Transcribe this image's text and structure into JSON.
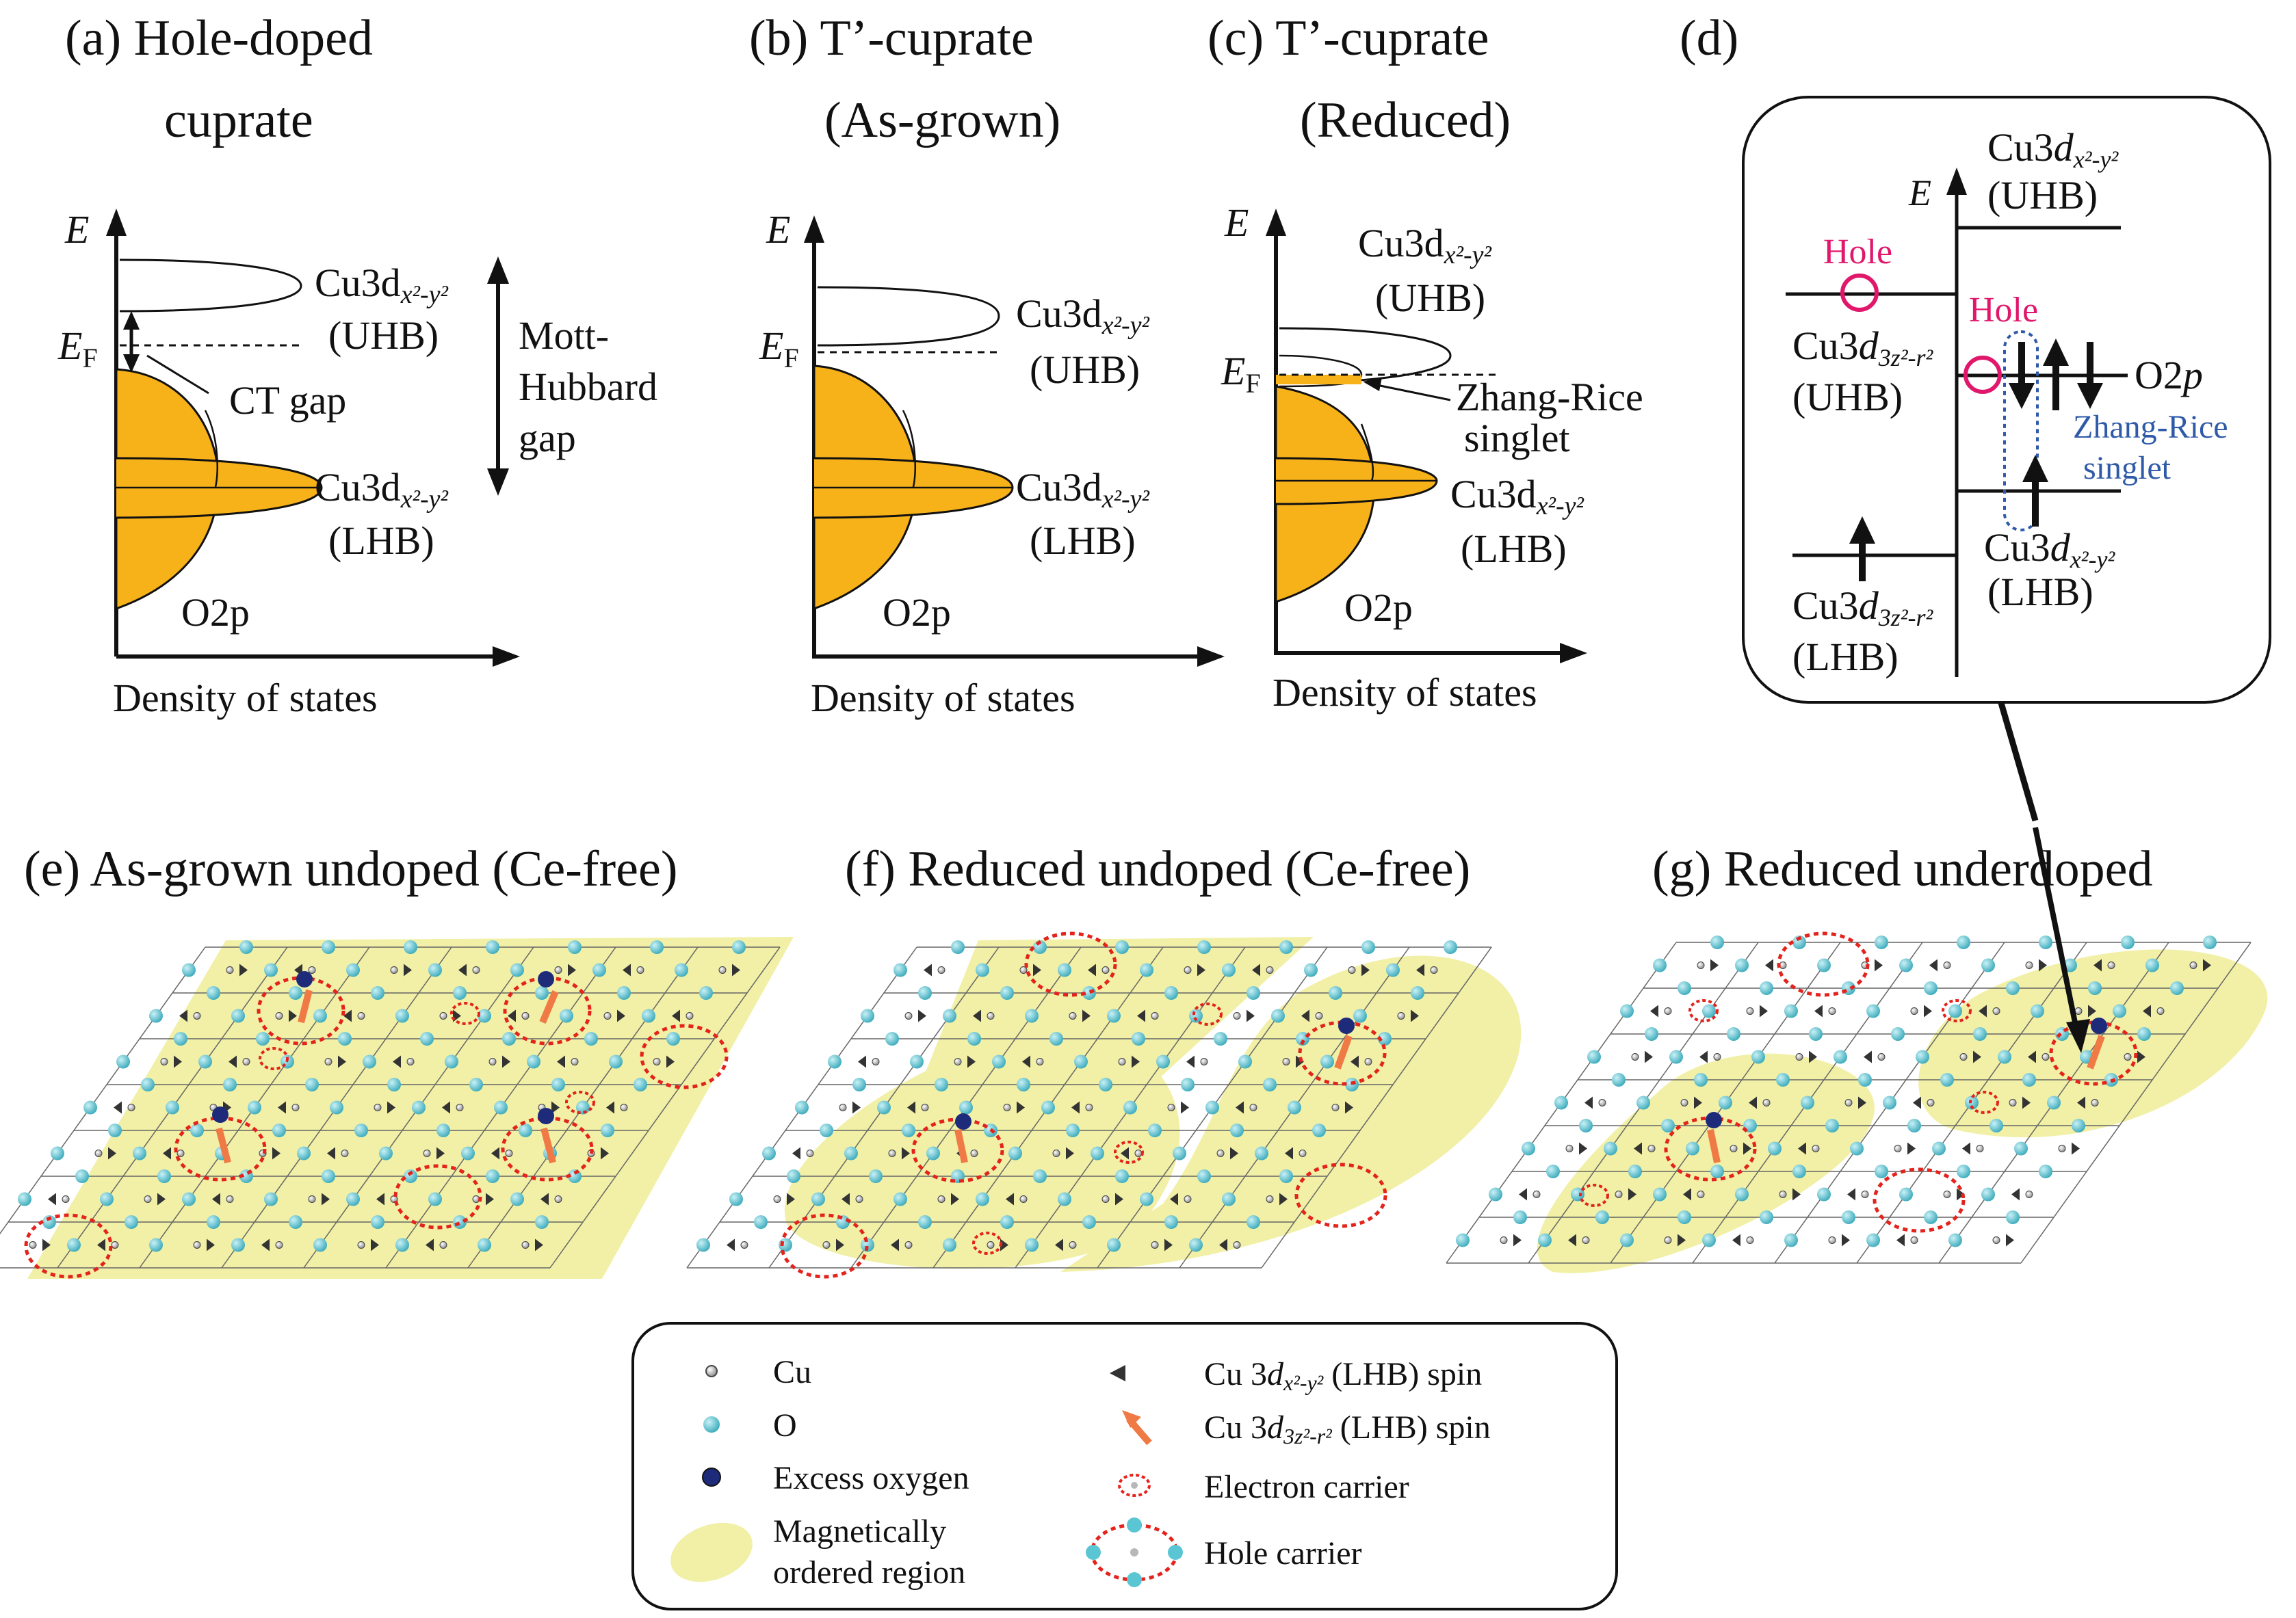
{
  "panels": {
    "a": {
      "label": "(a)  Hole-doped",
      "label2": "cuprate"
    },
    "b": {
      "label": "(b) T’-cuprate",
      "label2": "(As-grown)"
    },
    "c": {
      "label": "(c)  T’-cuprate",
      "label2": "(Reduced)"
    },
    "d": {
      "label": "(d)"
    },
    "e": {
      "label": "(e) As-grown undoped (Ce-free)"
    },
    "f": {
      "label": "(f)  Reduced undoped (Ce-free)"
    },
    "g": {
      "label": "(g)  Reduced underdoped"
    }
  },
  "dos": {
    "e_axis": "E",
    "ef": "E",
    "ef_sub": "F",
    "xaxis": "Density of states",
    "cu3d_prefix": "Cu3d",
    "x2y2": "x²-y²",
    "uhb": "(UHB)",
    "lhb": "(LHB)",
    "o2p": "O2p",
    "ct_gap": "CT gap",
    "mott1": "Mott-",
    "mott2": "Hubbard",
    "mott3": "gap",
    "zr1": "Zhang-Rice",
    "zr2": "singlet"
  },
  "levels": {
    "e_axis": "E",
    "cu3d": "Cu3",
    "d": "d",
    "x2y2": "x²-y²",
    "z2r2": "3z²-r²",
    "uhb": "(UHB)",
    "lhb": "(LHB)",
    "hole": "Hole",
    "o2p": "O2",
    "p": "p",
    "zr1": "Zhang-Rice",
    "zr2": "singlet"
  },
  "legend": {
    "items": [
      {
        "name": "cu",
        "label": "Cu"
      },
      {
        "name": "o",
        "label": "O"
      },
      {
        "name": "excess",
        "label": "Excess oxygen"
      },
      {
        "name": "mag1",
        "label": "Magnetically"
      },
      {
        "name": "mag2",
        "label": "ordered region"
      },
      {
        "name": "lhb_spin",
        "label_a": "Cu 3",
        "label_b": "d",
        "label_c": "x²-y²",
        "label_d": " (LHB) spin"
      },
      {
        "name": "z2_spin",
        "label_a": "Cu 3",
        "label_b": "d",
        "label_c": "3z²-r²",
        "label_d": " (LHB) spin"
      },
      {
        "name": "electron",
        "label": "Electron carrier"
      },
      {
        "name": "hole",
        "label": "Hole carrier"
      }
    ]
  },
  "colors": {
    "orange": "#F7B21A",
    "yellow": "#F1F0A6",
    "o_atom": "#5BC6D3",
    "cu_atom": "#B7B7B7",
    "excess": "#1E2B7A",
    "red": "#E3231C",
    "hole_pink": "#E0176B",
    "zr_blue": "#2E5AA8",
    "spin_orange": "#F07A45"
  }
}
